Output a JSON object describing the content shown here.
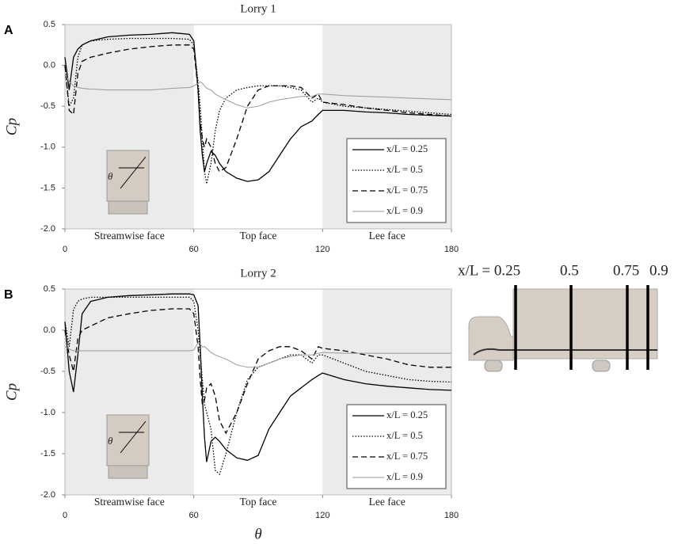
{
  "chart_data": [
    {
      "type": "line",
      "panel": "A",
      "title": "Lorry 1",
      "ylabel": "Cp",
      "annotations": [
        "Streamwise face",
        "Top face",
        "Lee face"
      ],
      "shaded": [
        [
          0,
          60
        ],
        [
          120,
          180
        ]
      ],
      "xlim": [
        0,
        180
      ],
      "xticks": [
        0,
        60,
        120,
        180
      ],
      "ylim": [
        -2.0,
        0.5
      ],
      "yticks": [
        0.5,
        {
          "value": 0,
          "label": "0.0"
        },
        -0.5,
        {
          "value": -1,
          "label": "-1.0"
        },
        -1.5,
        {
          "value": -2,
          "label": "-2.0"
        }
      ],
      "legend": "lower right",
      "x": [
        0,
        2,
        4,
        6,
        8,
        12,
        20,
        30,
        40,
        50,
        58,
        60,
        62,
        63,
        64,
        65,
        66,
        68,
        70,
        72,
        75,
        80,
        85,
        90,
        95,
        100,
        105,
        110,
        115,
        118,
        120,
        130,
        140,
        150,
        160,
        170,
        180
      ],
      "series": [
        {
          "name": "x/L = 0.25",
          "color": "#000000",
          "dash": "solid",
          "values": [
            0.1,
            -0.3,
            0.1,
            0.2,
            0.25,
            0.3,
            0.35,
            0.37,
            0.38,
            0.4,
            0.38,
            0.3,
            -0.3,
            -0.8,
            -1.1,
            -1.3,
            -1.2,
            -1.05,
            -1.1,
            -1.2,
            -1.3,
            -1.38,
            -1.42,
            -1.4,
            -1.3,
            -1.1,
            -0.9,
            -0.75,
            -0.68,
            -0.6,
            -0.55,
            -0.55,
            -0.57,
            -0.58,
            -0.6,
            -0.61,
            -0.62
          ]
        },
        {
          "name": "x/L = 0.5",
          "color": "#000000",
          "dash": "dot",
          "values": [
            0.0,
            -0.5,
            -0.4,
            0.1,
            0.25,
            0.3,
            0.32,
            0.33,
            0.33,
            0.33,
            0.32,
            0.25,
            -0.2,
            -0.5,
            -0.9,
            -1.3,
            -1.45,
            -1.2,
            -0.8,
            -0.55,
            -0.4,
            -0.3,
            -0.27,
            -0.25,
            -0.25,
            -0.25,
            -0.27,
            -0.3,
            -0.45,
            -0.4,
            -0.45,
            -0.5,
            -0.52,
            -0.54,
            -0.56,
            -0.58,
            -0.6
          ]
        },
        {
          "name": "x/L = 0.75",
          "color": "#000000",
          "dash": "dash",
          "values": [
            0.0,
            -0.55,
            -0.6,
            -0.1,
            0.05,
            0.1,
            0.15,
            0.2,
            0.23,
            0.25,
            0.25,
            0.2,
            -0.3,
            -0.7,
            -0.9,
            -1.0,
            -0.9,
            -1.0,
            -1.2,
            -1.3,
            -1.25,
            -0.9,
            -0.5,
            -0.3,
            -0.25,
            -0.25,
            -0.25,
            -0.27,
            -0.4,
            -0.35,
            -0.45,
            -0.48,
            -0.52,
            -0.55,
            -0.58,
            -0.6,
            -0.62
          ]
        },
        {
          "name": "x/L = 0.9",
          "color": "#9a9a9a",
          "dash": "solid",
          "values": [
            -0.1,
            -0.2,
            -0.25,
            -0.27,
            -0.28,
            -0.29,
            -0.3,
            -0.3,
            -0.3,
            -0.28,
            -0.27,
            -0.25,
            -0.22,
            -0.2,
            -0.22,
            -0.25,
            -0.28,
            -0.3,
            -0.35,
            -0.38,
            -0.42,
            -0.48,
            -0.52,
            -0.5,
            -0.45,
            -0.42,
            -0.4,
            -0.38,
            -0.38,
            -0.35,
            -0.35,
            -0.37,
            -0.38,
            -0.39,
            -0.4,
            -0.41,
            -0.42
          ]
        }
      ]
    },
    {
      "type": "line",
      "panel": "B",
      "title": "Lorry 2",
      "ylabel": "Cp",
      "xlabel": "θ",
      "annotations": [
        "Streamwise face",
        "Top face",
        "Lee face"
      ],
      "shaded": [
        [
          0,
          60
        ],
        [
          120,
          180
        ]
      ],
      "xlim": [
        0,
        180
      ],
      "xticks": [
        0,
        60,
        120,
        180
      ],
      "ylim": [
        -2.0,
        0.5
      ],
      "yticks": [
        0.5,
        {
          "value": 0,
          "label": "0.0"
        },
        -0.5,
        {
          "value": -1,
          "label": "-1.0"
        },
        -1.5,
        {
          "value": -2,
          "label": "-2.0"
        }
      ],
      "legend": "lower right",
      "x": [
        0,
        2,
        4,
        6,
        8,
        12,
        20,
        30,
        40,
        50,
        58,
        60,
        62,
        63,
        64,
        65,
        66,
        68,
        70,
        72,
        75,
        80,
        85,
        90,
        95,
        100,
        105,
        110,
        115,
        118,
        120,
        130,
        140,
        150,
        160,
        170,
        180
      ],
      "series": [
        {
          "name": "x/L = 0.25",
          "color": "#000000",
          "dash": "solid",
          "values": [
            0.1,
            -0.5,
            -0.75,
            -0.3,
            0.2,
            0.35,
            0.4,
            0.42,
            0.43,
            0.44,
            0.44,
            0.43,
            0.3,
            -0.2,
            -0.8,
            -1.3,
            -1.6,
            -1.35,
            -1.3,
            -1.35,
            -1.45,
            -1.55,
            -1.58,
            -1.52,
            -1.2,
            -1.0,
            -0.8,
            -0.7,
            -0.6,
            -0.55,
            -0.52,
            -0.6,
            -0.65,
            -0.68,
            -0.7,
            -0.72,
            -0.73
          ]
        },
        {
          "name": "x/L = 0.5",
          "color": "#000000",
          "dash": "dot",
          "values": [
            0.1,
            -0.2,
            0.25,
            0.35,
            0.38,
            0.4,
            0.4,
            0.4,
            0.4,
            0.4,
            0.4,
            0.35,
            0.0,
            -0.3,
            -0.6,
            -0.9,
            -1.0,
            -1.2,
            -1.7,
            -1.75,
            -1.5,
            -1.0,
            -0.6,
            -0.45,
            -0.4,
            -0.35,
            -0.3,
            -0.3,
            -0.4,
            -0.3,
            -0.3,
            -0.4,
            -0.5,
            -0.55,
            -0.6,
            -0.62,
            -0.63
          ]
        },
        {
          "name": "x/L = 0.75",
          "color": "#000000",
          "dash": "dash",
          "values": [
            0.0,
            -0.3,
            -0.5,
            -0.1,
            0.0,
            0.05,
            0.15,
            0.2,
            0.24,
            0.26,
            0.26,
            0.2,
            -0.2,
            -0.6,
            -0.9,
            -0.85,
            -0.7,
            -0.65,
            -0.8,
            -1.1,
            -1.25,
            -1.0,
            -0.65,
            -0.35,
            -0.25,
            -0.2,
            -0.2,
            -0.25,
            -0.35,
            -0.2,
            -0.22,
            -0.25,
            -0.3,
            -0.35,
            -0.42,
            -0.45,
            -0.45
          ]
        },
        {
          "name": "x/L = 0.9",
          "color": "#9a9a9a",
          "dash": "solid",
          "values": [
            -0.2,
            -0.23,
            -0.25,
            -0.25,
            -0.25,
            -0.25,
            -0.25,
            -0.25,
            -0.25,
            -0.25,
            -0.25,
            -0.24,
            -0.15,
            -0.17,
            -0.2,
            -0.2,
            -0.22,
            -0.27,
            -0.3,
            -0.32,
            -0.35,
            -0.42,
            -0.45,
            -0.45,
            -0.4,
            -0.35,
            -0.32,
            -0.3,
            -0.3,
            -0.28,
            -0.27,
            -0.28,
            -0.28,
            -0.28,
            -0.28,
            -0.28,
            -0.28
          ]
        }
      ]
    }
  ],
  "diagram": {
    "labels": [
      "x/L = 0.25",
      "0.5",
      "0.75",
      "0.9"
    ]
  }
}
